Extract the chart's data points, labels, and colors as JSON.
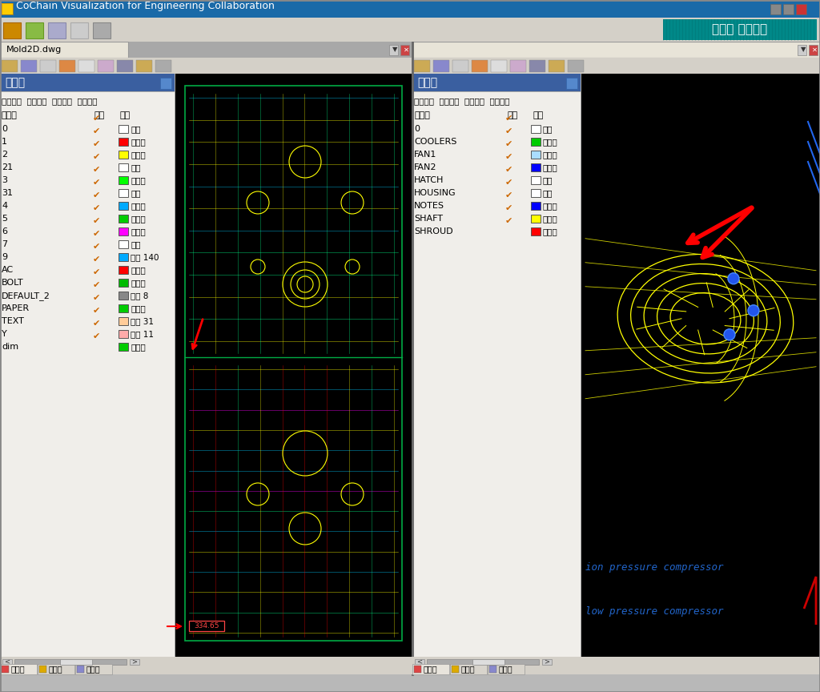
{
  "title_bar": "CoChain Visualization for Engineering Collaboration",
  "title_bar_color": "#1a6aa8",
  "title_text_color": "#ffffff",
  "brand_text": "꽀구단 협업환경",
  "brand_bg": "#009999",
  "bg_color": "#b8b8b8",
  "left_panel_tab": "Mold2D.dwg",
  "left_layer_title": "레이어",
  "left_layer_title_bg": "#4169b0",
  "left_controls": "전체선택  선택켜기  선택끄기  반전켜기",
  "left_layers": [
    "0",
    "1",
    "2",
    "21",
    "3",
    "31",
    "4",
    "5",
    "6",
    "7",
    "9",
    "AC",
    "BOLT",
    "DEFAULT_2",
    "PAPER",
    "TEXT",
    "Y",
    "dim"
  ],
  "left_color_labels": [
    "흰색",
    "빨간색",
    "노란색",
    "흰색",
    "조록색",
    "흰색",
    "하늘색",
    "조록색",
    "선통색",
    "흰색",
    "색상 140",
    "빨간색",
    "조록색",
    "색상 8",
    "조록색",
    "색상 31",
    "색상 11",
    "조록색"
  ],
  "left_color_swatches": [
    "#ffffff",
    "#ff0000",
    "#ffff00",
    "#ffffff",
    "#00ff00",
    "#ffffff",
    "#00aaff",
    "#00cc00",
    "#ff00ff",
    "#ffffff",
    "#00aaff",
    "#ff0000",
    "#00bb00",
    "#888888",
    "#00cc00",
    "#ffcc99",
    "#ffaaaa",
    "#00cc00"
  ],
  "left_swatch_outline": [
    true,
    false,
    false,
    true,
    false,
    true,
    false,
    false,
    false,
    true,
    false,
    false,
    false,
    false,
    false,
    false,
    false,
    false
  ],
  "right_layer_title": "레이어",
  "right_layers": [
    "0",
    "COOLERS",
    "FAN1",
    "FAN2",
    "HATCH",
    "HOUSING",
    "NOTES",
    "SHAFT",
    "SHROUD"
  ],
  "right_color_labels": [
    "흰색",
    "조록색",
    "하늘색",
    "파란색",
    "흰색",
    "흰색",
    "파란색",
    "노란색",
    "빨간색"
  ],
  "right_color_swatches": [
    "#ffffff",
    "#00cc00",
    "#aaddff",
    "#0000ff",
    "#ffffff",
    "#ffffff",
    "#0000ff",
    "#ffff00",
    "#ff0000"
  ],
  "right_swatch_outline": [
    true,
    false,
    false,
    false,
    true,
    true,
    false,
    false,
    false
  ],
  "col_ki": "켜기",
  "col_saek": "색상",
  "col_layer": "레이어",
  "bottom_tabs": [
    "레이어",
    "마크업",
    "뉴설정"
  ],
  "annotation1": "ion pressure compressor",
  "annotation2": "low pressure compressor",
  "dim_text": "334.65"
}
